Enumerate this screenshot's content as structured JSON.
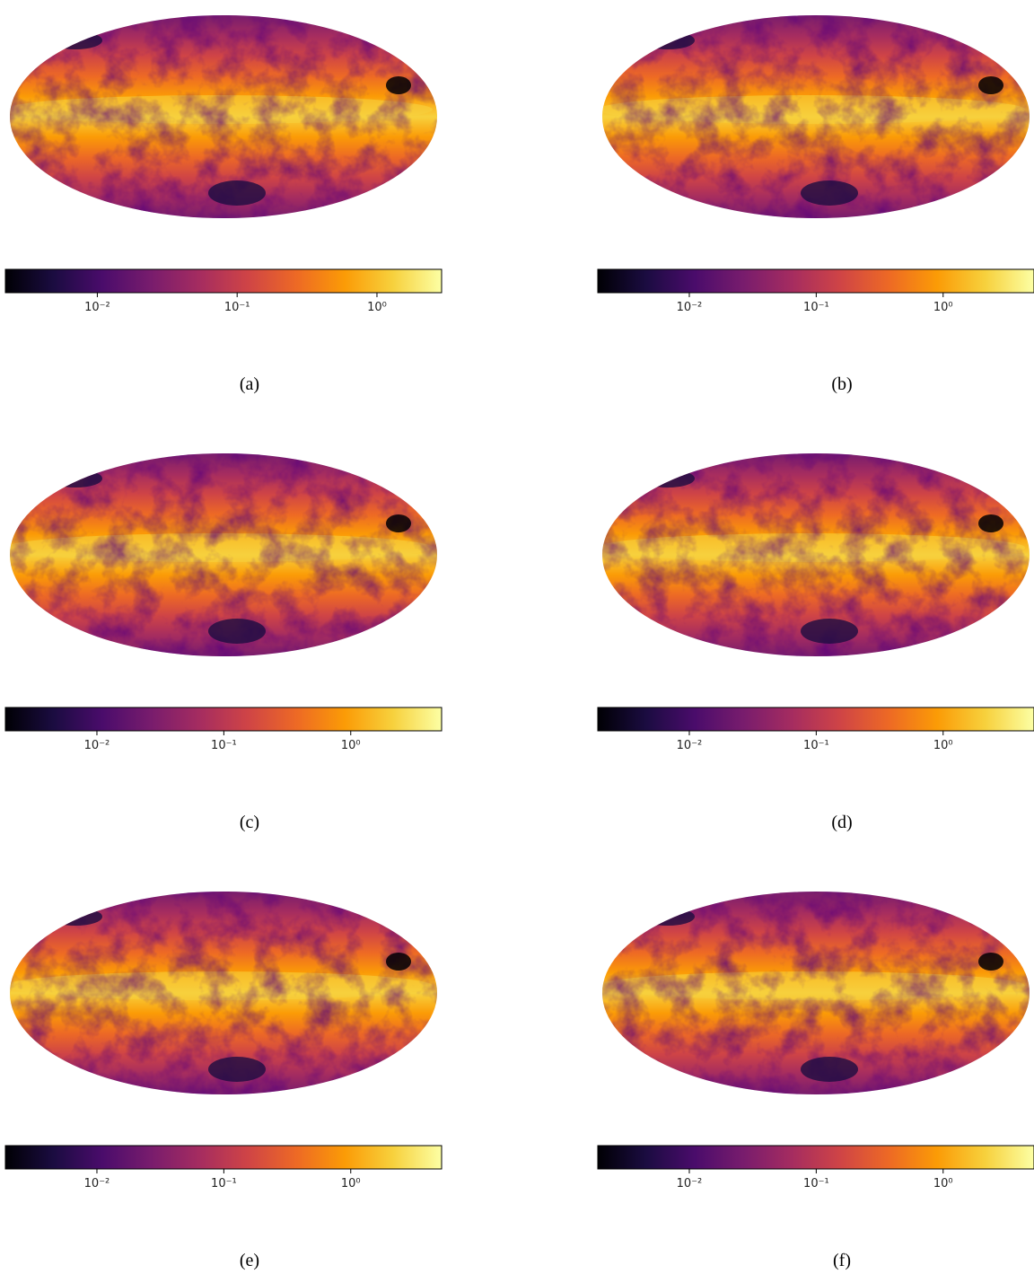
{
  "chart_data": [
    {
      "type": "map",
      "caption": "(a)",
      "colormap": "inferno",
      "log": true,
      "xlim": [
        0.0022,
        2.9
      ],
      "xticks": [
        {
          "value": 0.01,
          "label": "10⁻²"
        },
        {
          "value": 0.1,
          "label": "10⁻¹"
        },
        {
          "value": 1,
          "label": "10⁰"
        }
      ]
    },
    {
      "type": "map",
      "caption": "(b)",
      "colormap": "inferno",
      "log": true,
      "xlim": [
        0.0019,
        5.2
      ],
      "xticks": [
        {
          "value": 0.01,
          "label": "10⁻²"
        },
        {
          "value": 0.1,
          "label": "10⁻¹"
        },
        {
          "value": 1,
          "label": "10⁰"
        }
      ]
    },
    {
      "type": "map",
      "caption": "(c)",
      "colormap": "inferno",
      "log": true,
      "xlim": [
        0.0019,
        5.2
      ],
      "xticks": [
        {
          "value": 0.01,
          "label": "10⁻²"
        },
        {
          "value": 0.1,
          "label": "10⁻¹"
        },
        {
          "value": 1,
          "label": "10⁰"
        }
      ]
    },
    {
      "type": "map",
      "caption": "(d)",
      "colormap": "inferno",
      "log": true,
      "xlim": [
        0.0019,
        5.2
      ],
      "xticks": [
        {
          "value": 0.01,
          "label": "10⁻²"
        },
        {
          "value": 0.1,
          "label": "10⁻¹"
        },
        {
          "value": 1,
          "label": "10⁰"
        }
      ]
    },
    {
      "type": "map",
      "caption": "(e)",
      "colormap": "inferno",
      "log": true,
      "xlim": [
        0.0019,
        5.2
      ],
      "xticks": [
        {
          "value": 0.01,
          "label": "10⁻²"
        },
        {
          "value": 0.1,
          "label": "10⁻¹"
        },
        {
          "value": 1,
          "label": "10⁰"
        }
      ]
    },
    {
      "type": "map",
      "caption": "(f)",
      "colormap": "inferno",
      "log": true,
      "xlim": [
        0.0019,
        5.2
      ],
      "xticks": [
        {
          "value": 0.01,
          "label": "10⁻²"
        },
        {
          "value": 0.1,
          "label": "10⁻¹"
        },
        {
          "value": 1,
          "label": "10⁰"
        }
      ]
    }
  ]
}
